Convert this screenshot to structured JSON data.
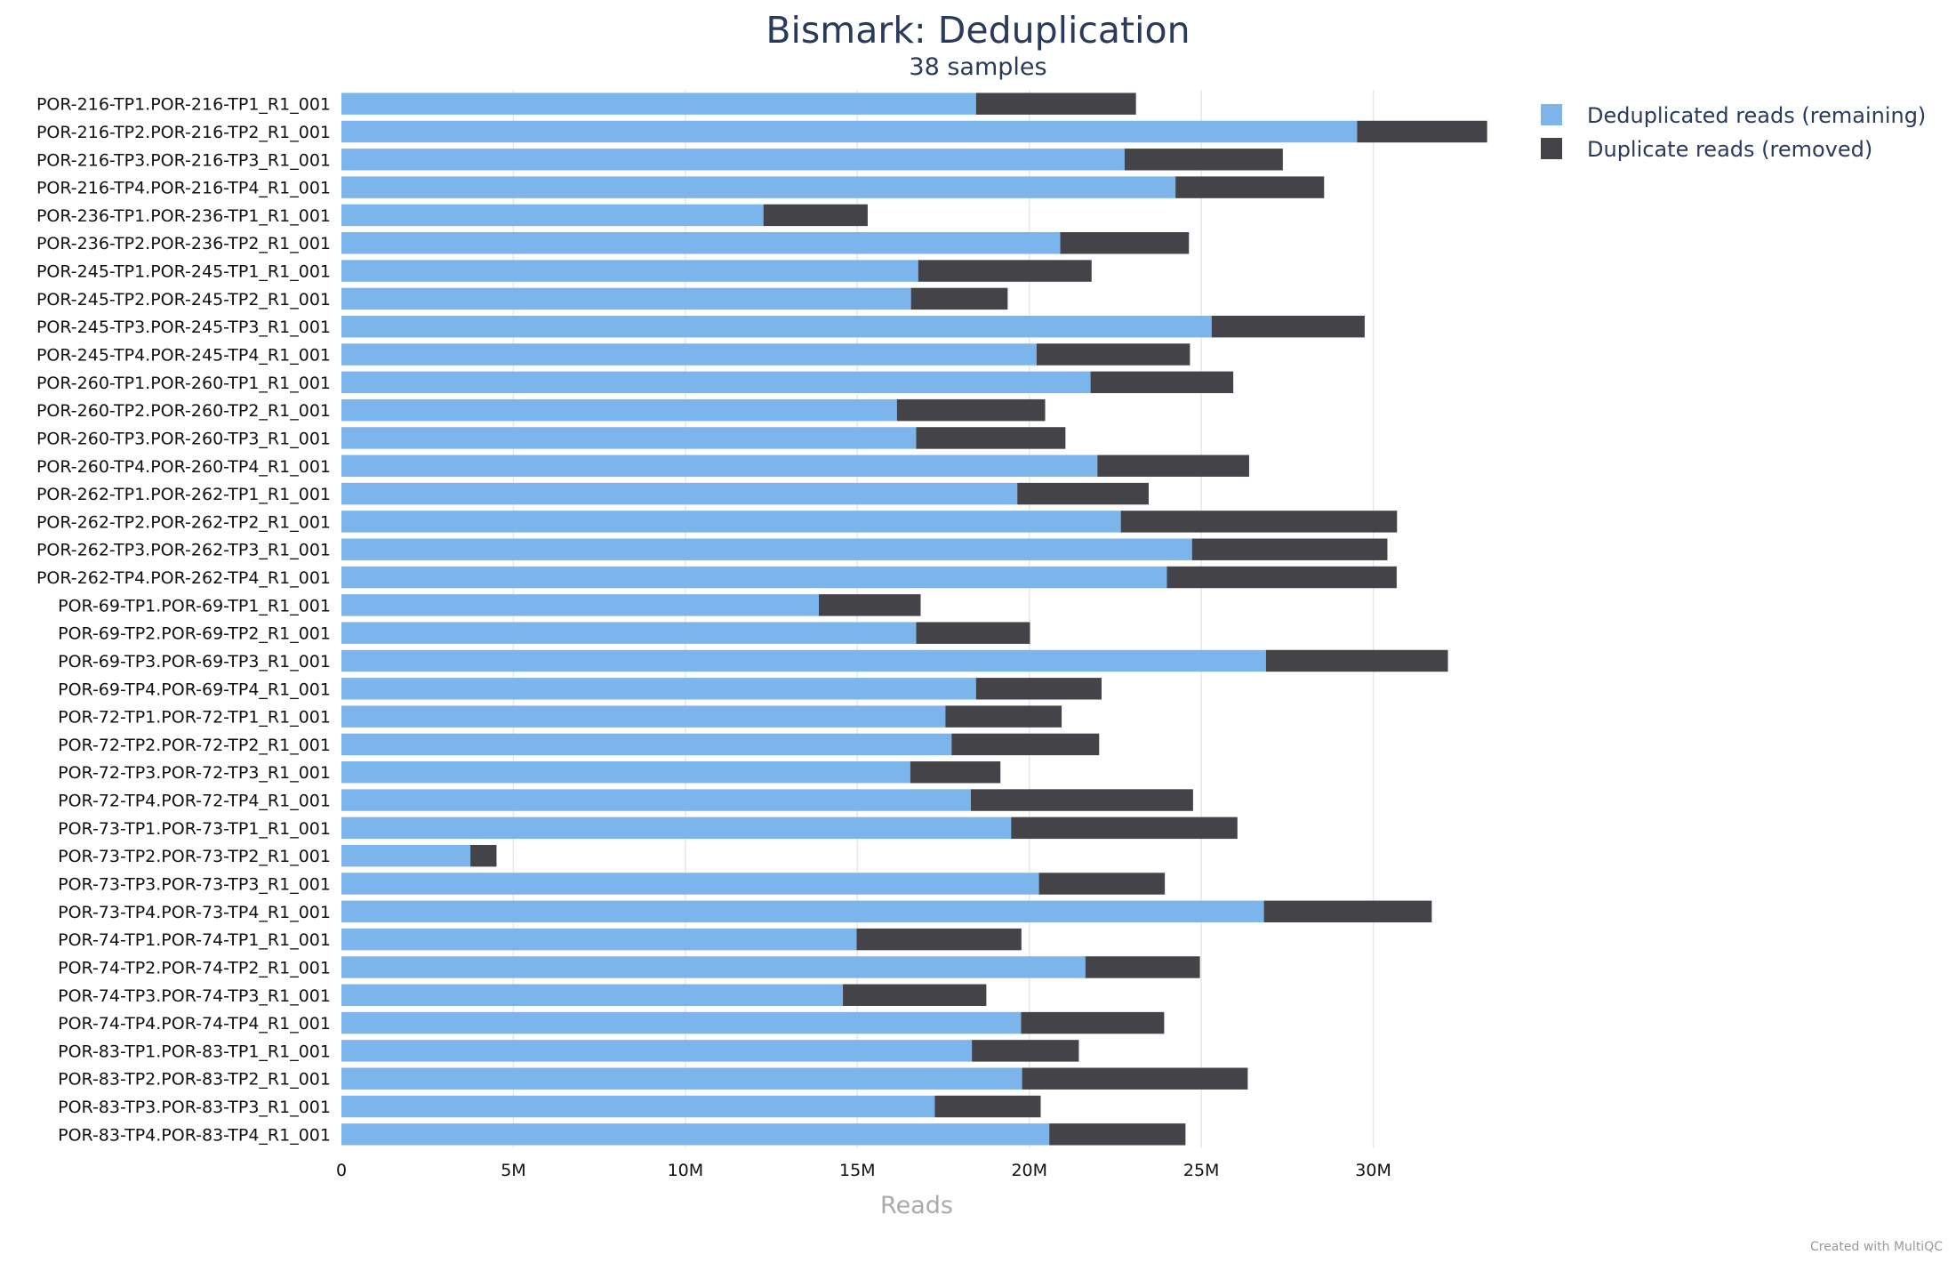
{
  "chart_data": {
    "type": "bar",
    "orientation": "horizontal",
    "stacked": true,
    "title": "Bismark: Deduplication",
    "subtitle": "38 samples",
    "xlabel": "Reads",
    "xlim": [
      0,
      33500000
    ],
    "xticks": [
      0,
      5000000,
      10000000,
      15000000,
      20000000,
      25000000,
      30000000
    ],
    "xtick_labels": [
      "0",
      "5M",
      "10M",
      "15M",
      "20M",
      "25M",
      "30M"
    ],
    "grid": true,
    "legend_position": "top-right",
    "categories": [
      "POR-216-TP1.POR-216-TP1_R1_001",
      "POR-216-TP2.POR-216-TP2_R1_001",
      "POR-216-TP3.POR-216-TP3_R1_001",
      "POR-216-TP4.POR-216-TP4_R1_001",
      "POR-236-TP1.POR-236-TP1_R1_001",
      "POR-236-TP2.POR-236-TP2_R1_001",
      "POR-245-TP1.POR-245-TP1_R1_001",
      "POR-245-TP2.POR-245-TP2_R1_001",
      "POR-245-TP3.POR-245-TP3_R1_001",
      "POR-245-TP4.POR-245-TP4_R1_001",
      "POR-260-TP1.POR-260-TP1_R1_001",
      "POR-260-TP2.POR-260-TP2_R1_001",
      "POR-260-TP3.POR-260-TP3_R1_001",
      "POR-260-TP4.POR-260-TP4_R1_001",
      "POR-262-TP1.POR-262-TP1_R1_001",
      "POR-262-TP2.POR-262-TP2_R1_001",
      "POR-262-TP3.POR-262-TP3_R1_001",
      "POR-262-TP4.POR-262-TP4_R1_001",
      "POR-69-TP1.POR-69-TP1_R1_001",
      "POR-69-TP2.POR-69-TP2_R1_001",
      "POR-69-TP3.POR-69-TP3_R1_001",
      "POR-69-TP4.POR-69-TP4_R1_001",
      "POR-72-TP1.POR-72-TP1_R1_001",
      "POR-72-TP2.POR-72-TP2_R1_001",
      "POR-72-TP3.POR-72-TP3_R1_001",
      "POR-72-TP4.POR-72-TP4_R1_001",
      "POR-73-TP1.POR-73-TP1_R1_001",
      "POR-73-TP2.POR-73-TP2_R1_001",
      "POR-73-TP3.POR-73-TP3_R1_001",
      "POR-73-TP4.POR-73-TP4_R1_001",
      "POR-74-TP1.POR-74-TP1_R1_001",
      "POR-74-TP2.POR-74-TP2_R1_001",
      "POR-74-TP3.POR-74-TP3_R1_001",
      "POR-74-TP4.POR-74-TP4_R1_001",
      "POR-83-TP1.POR-83-TP1_R1_001",
      "POR-83-TP2.POR-83-TP2_R1_001",
      "POR-83-TP3.POR-83-TP3_R1_001",
      "POR-83-TP4.POR-83-TP4_R1_001"
    ],
    "series": [
      {
        "name": "Deduplicated reads (remaining)",
        "color": "#7cb5ec",
        "values": [
          18450000,
          29530000,
          22770000,
          24250000,
          12270000,
          20900000,
          16770000,
          16560000,
          25300000,
          20210000,
          21780000,
          16150000,
          16710000,
          21980000,
          19650000,
          22660000,
          24730000,
          24000000,
          13880000,
          16710000,
          26880000,
          18450000,
          17560000,
          17740000,
          16540000,
          18300000,
          19470000,
          3750000,
          20280000,
          26820000,
          14980000,
          21630000,
          14580000,
          19760000,
          18330000,
          19790000,
          17250000,
          20580000
        ]
      },
      {
        "name": "Duplicate reads (removed)",
        "color": "#434348",
        "values": [
          4650000,
          3780000,
          4600000,
          4320000,
          3030000,
          3740000,
          5040000,
          2810000,
          4450000,
          4460000,
          4150000,
          4310000,
          4340000,
          4410000,
          3820000,
          8030000,
          5680000,
          6680000,
          2960000,
          3310000,
          5290000,
          3650000,
          3380000,
          4290000,
          2620000,
          6460000,
          6580000,
          760000,
          3660000,
          4880000,
          4790000,
          3330000,
          4170000,
          4160000,
          3110000,
          6560000,
          3080000,
          3960000
        ]
      }
    ]
  },
  "credit": "Created with MultiQC"
}
